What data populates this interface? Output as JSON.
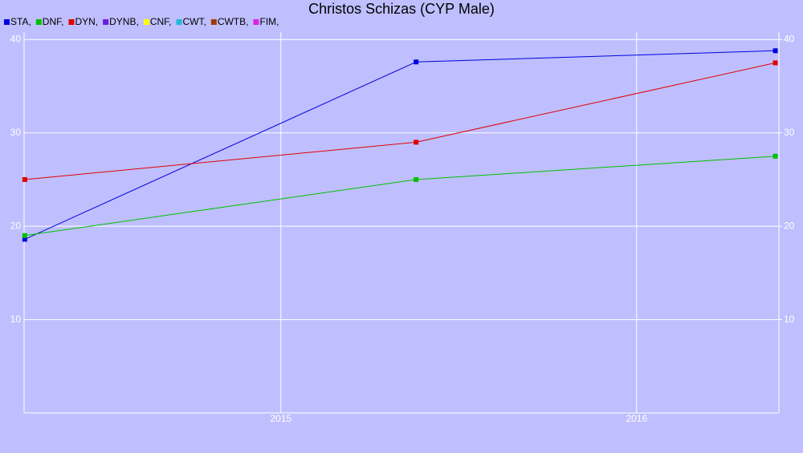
{
  "chart_data": {
    "type": "line",
    "title": "Christos Schizas (CYP Male)",
    "x": [
      2014.28,
      2015.38,
      2016.39
    ],
    "series": [
      {
        "name": "STA,",
        "color": "#0000e0",
        "values": [
          18.6,
          37.6,
          38.8
        ]
      },
      {
        "name": "DNF,",
        "color": "#00c000",
        "values": [
          19.0,
          25.0,
          27.5
        ]
      },
      {
        "name": "DYN,",
        "color": "#e00000",
        "values": [
          25.0,
          29.0,
          37.5
        ]
      },
      {
        "name": "DYNB,",
        "color": "#6a1fd8",
        "values": [
          null,
          null,
          null
        ]
      },
      {
        "name": "CNF,",
        "color": "#ffff00",
        "values": [
          null,
          null,
          null
        ]
      },
      {
        "name": "CWT,",
        "color": "#22b8d8",
        "values": [
          null,
          null,
          null
        ]
      },
      {
        "name": "CWTB,",
        "color": "#a03c00",
        "values": [
          null,
          null,
          null
        ]
      },
      {
        "name": "FIM,",
        "color": "#e020e0",
        "values": [
          null,
          null,
          null
        ]
      }
    ],
    "xlim": [
      2014.278,
      2016.4
    ],
    "xticks": [
      2015,
      2016
    ],
    "ylim": [
      0,
      40.8
    ],
    "yticks": [
      10,
      20,
      30,
      40
    ],
    "y2lim": [
      0,
      40.8
    ],
    "y2ticks": [
      10,
      20,
      30,
      40
    ],
    "grid": true
  }
}
